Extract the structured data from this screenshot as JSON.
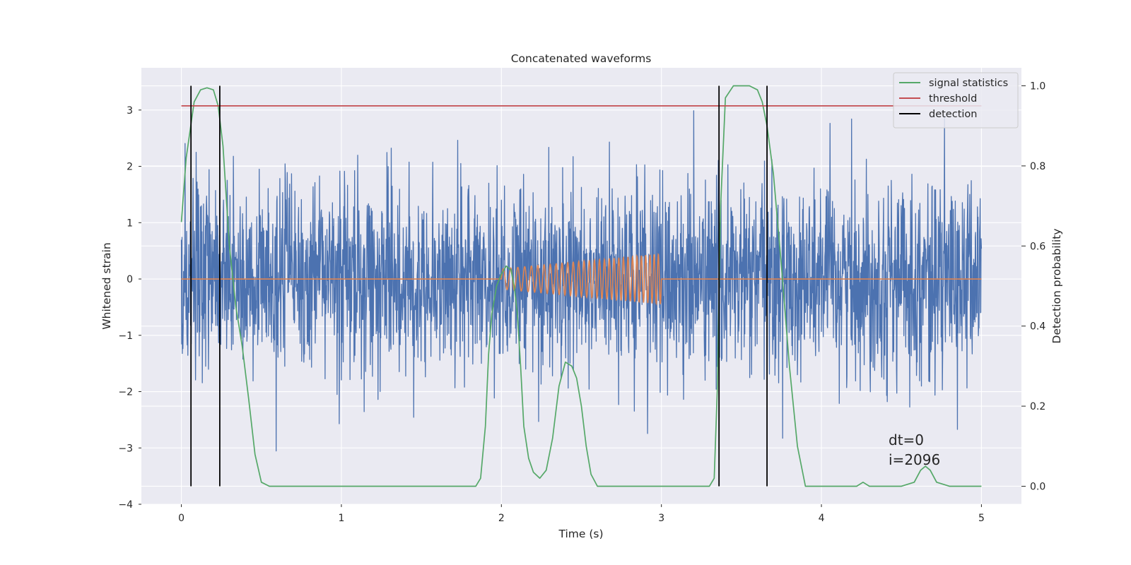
{
  "chart_data": {
    "type": "line",
    "title": "Concatenated waveforms",
    "xlabel": "Time (s)",
    "ylabel": "Whitened strain",
    "ylabel_right": "Detection probability",
    "xlim": [
      -0.25,
      5.25
    ],
    "ylim": [
      -4.0,
      3.75
    ],
    "ylim_right": [
      -0.045,
      1.045
    ],
    "x_ticks": [
      0,
      1,
      2,
      3,
      4,
      5
    ],
    "y_ticks": [
      -4,
      -3,
      -2,
      -1,
      0,
      1,
      2,
      3
    ],
    "y_ticks_right": [
      0.0,
      0.2,
      0.4,
      0.6,
      0.8,
      1.0
    ],
    "x_tick_labels": [
      "0",
      "1",
      "2",
      "3",
      "4",
      "5"
    ],
    "y_tick_labels": [
      "−4",
      "−3",
      "−2",
      "−1",
      "0",
      "1",
      "2",
      "3"
    ],
    "y_tick_labels_right": [
      "0.0",
      "0.2",
      "0.4",
      "0.6",
      "0.8",
      "1.0"
    ],
    "grid": true,
    "legend_position": "top-right",
    "series": [
      {
        "name": "",
        "color": "#4c72b0",
        "axis": "left",
        "kind": "noise",
        "x_range": [
          0,
          5
        ],
        "std": 0.85
      },
      {
        "name": "",
        "color": "#dd8452",
        "axis": "left",
        "kind": "chirp",
        "x_range": [
          0,
          5
        ],
        "chirp_start": 2.0,
        "chirp_end": 3.0,
        "amp_start": 0.18,
        "amp_end": 0.45,
        "cycles": 30
      },
      {
        "name": "signal statistics",
        "color": "#55a868",
        "axis": "right",
        "x": [
          0,
          0.03,
          0.08,
          0.12,
          0.16,
          0.2,
          0.23,
          0.26,
          0.3,
          0.34,
          0.38,
          0.42,
          0.46,
          0.5,
          0.55,
          1.0,
          1.5,
          1.84,
          1.87,
          1.9,
          1.92,
          1.94,
          1.97,
          2.0,
          2.03,
          2.06,
          2.08,
          2.1,
          2.12,
          2.14,
          2.17,
          2.2,
          2.24,
          2.28,
          2.32,
          2.36,
          2.4,
          2.44,
          2.47,
          2.5,
          2.53,
          2.56,
          2.6,
          2.65,
          3.0,
          3.3,
          3.33,
          3.35,
          3.37,
          3.4,
          3.45,
          3.55,
          3.6,
          3.63,
          3.66,
          3.7,
          3.75,
          3.8,
          3.85,
          3.9,
          4.1,
          4.22,
          4.26,
          4.3,
          4.5,
          4.58,
          4.62,
          4.65,
          4.68,
          4.72,
          4.8,
          5.0
        ],
        "y": [
          0.66,
          0.82,
          0.96,
          0.99,
          0.995,
          0.99,
          0.95,
          0.85,
          0.6,
          0.45,
          0.35,
          0.22,
          0.08,
          0.01,
          0.0,
          0.0,
          0.0,
          0.0,
          0.02,
          0.15,
          0.33,
          0.43,
          0.5,
          0.53,
          0.55,
          0.54,
          0.5,
          0.43,
          0.3,
          0.15,
          0.07,
          0.035,
          0.02,
          0.04,
          0.12,
          0.25,
          0.31,
          0.3,
          0.27,
          0.2,
          0.1,
          0.03,
          0.0,
          0.0,
          0.0,
          0.0,
          0.02,
          0.25,
          0.7,
          0.97,
          1.0,
          1.0,
          0.99,
          0.96,
          0.9,
          0.78,
          0.55,
          0.3,
          0.1,
          0.0,
          0.0,
          0.0,
          0.01,
          0.0,
          0.0,
          0.01,
          0.04,
          0.05,
          0.04,
          0.01,
          0.0,
          0.0
        ]
      },
      {
        "name": "threshold",
        "color": "#c44e52",
        "axis": "right",
        "x": [
          0,
          5
        ],
        "y": [
          0.95,
          0.95
        ]
      },
      {
        "name": "detection",
        "color": "#000000",
        "axis": "right",
        "kind": "vlines",
        "x": [
          0.06,
          0.24,
          3.36,
          3.66
        ],
        "y_range": [
          0.0,
          1.0
        ]
      }
    ],
    "annotations": [
      "dt=0",
      "i=2096"
    ]
  }
}
